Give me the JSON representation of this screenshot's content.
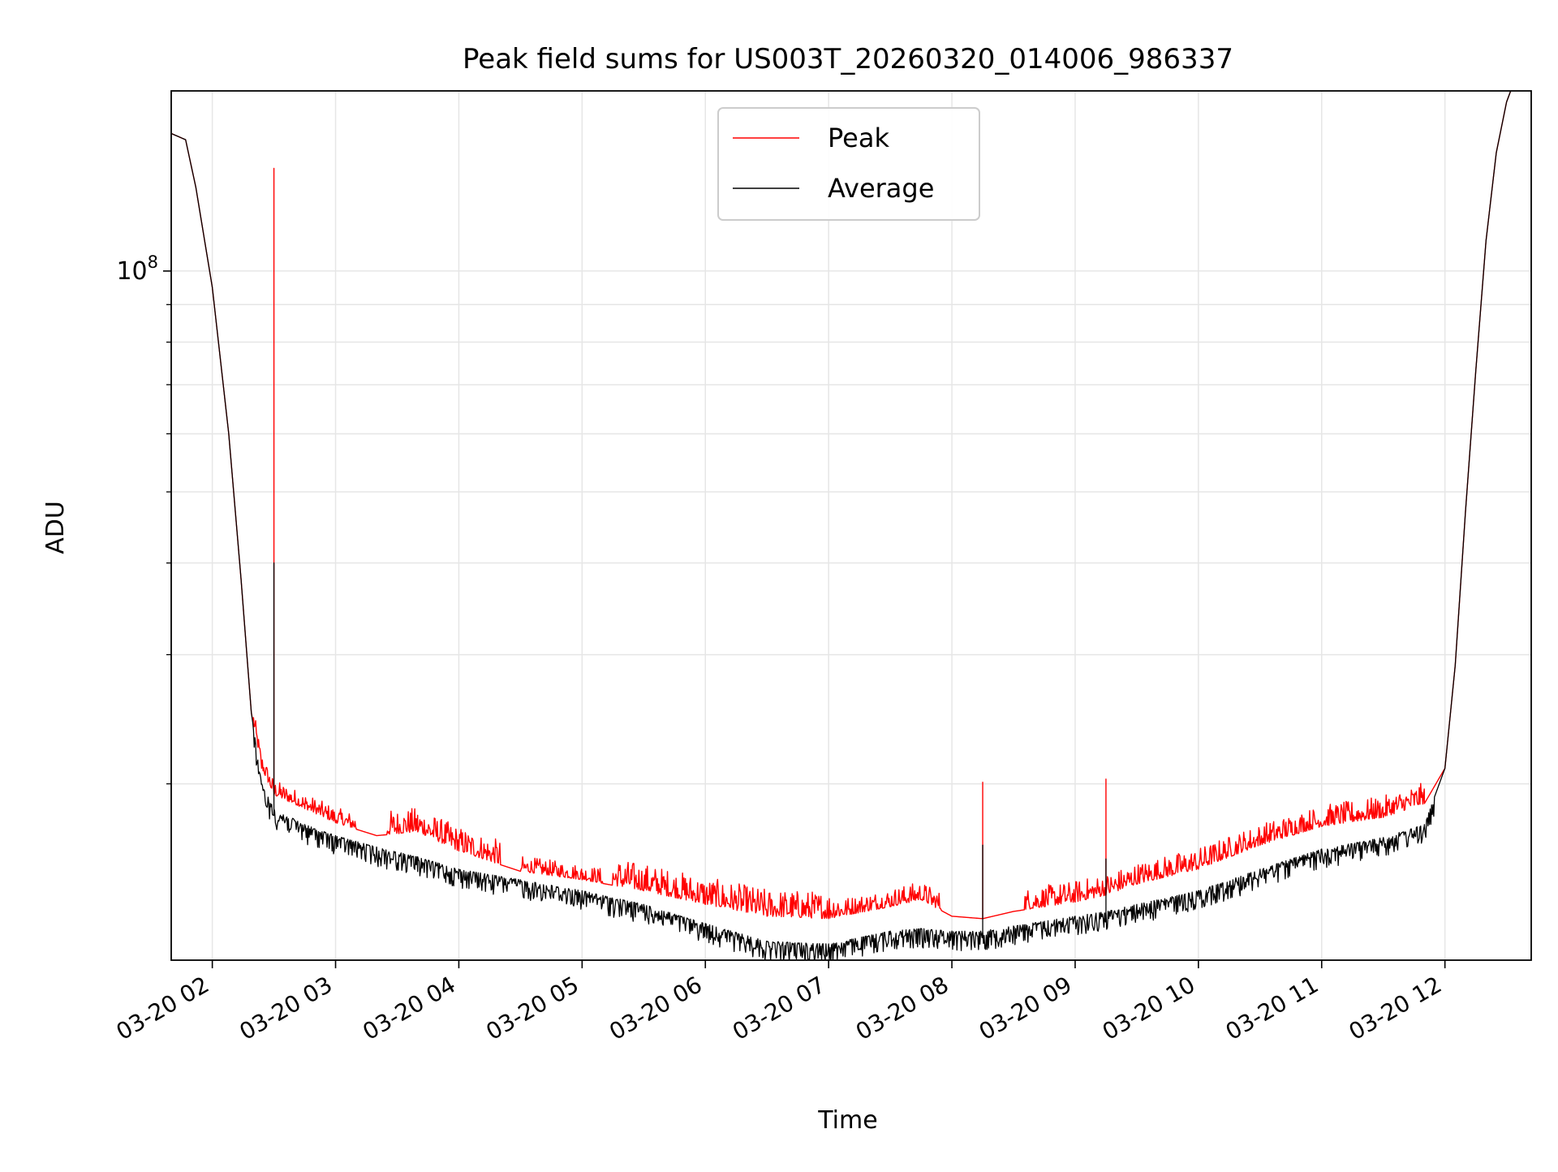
{
  "chart_data": {
    "type": "line",
    "title": "Peak field sums for US003T_20260320_014006_986337",
    "xlabel": "Time",
    "ylabel": "ADU",
    "y_scale": "log",
    "grid": true,
    "legend_position": "upper-center",
    "x_range": [
      "03-20 01:40",
      "03-20 12:42"
    ],
    "ylim": [
      11500000,
      176000000
    ],
    "x_ticks": [
      "03-20 02",
      "03-20 03",
      "03-20 04",
      "03-20 05",
      "03-20 06",
      "03-20 07",
      "03-20 08",
      "03-20 09",
      "03-20 10",
      "03-20 11",
      "03-20 12"
    ],
    "y_tick_labels": [
      {
        "value": 100000000,
        "base": "10",
        "exponent": "8"
      }
    ],
    "y_minor_ticks": [
      20000000,
      30000000,
      40000000,
      50000000,
      60000000,
      70000000,
      80000000,
      90000000
    ],
    "colors": {
      "Peak": "#ff0000",
      "Average": "#000000"
    },
    "series": [
      {
        "name": "Peak",
        "color": "#ff0000",
        "points": [
          [
            "03-20 01:40",
            154000000
          ],
          [
            "03-20 01:47",
            151000000
          ],
          [
            "03-20 01:52",
            130000000
          ],
          [
            "03-20 02:00",
            95000000
          ],
          [
            "03-20 02:08",
            60000000
          ],
          [
            "03-20 02:14",
            38000000
          ],
          [
            "03-20 02:19",
            25000000
          ],
          [
            "03-20 02:24",
            21000000
          ],
          [
            "03-20 02:30",
            19300000
          ],
          [
            "03-20 02:30",
            138000000
          ],
          [
            "03-20 02:30",
            19300000
          ],
          [
            "03-20 02:45",
            18500000
          ],
          [
            "03-20 03:00",
            17700000
          ],
          [
            "03-20 03:20",
            17000000
          ],
          [
            "03-20 03:40",
            17200000
          ],
          [
            "03-20 04:00",
            16200000
          ],
          [
            "03-20 04:30",
            15200000
          ],
          [
            "03-20 05:00",
            14800000
          ],
          [
            "03-20 05:30",
            14300000
          ],
          [
            "03-20 06:00",
            13700000
          ],
          [
            "03-20 06:30",
            13200000
          ],
          [
            "03-20 07:00",
            13100000
          ],
          [
            "03-20 07:30",
            13600000
          ],
          [
            "03-20 07:45",
            13900000
          ],
          [
            "03-20 08:00",
            13200000
          ],
          [
            "03-20 08:15",
            13100000
          ],
          [
            "03-20 08:15",
            20100000
          ],
          [
            "03-20 08:15",
            13100000
          ],
          [
            "03-20 08:30",
            13400000
          ],
          [
            "03-20 09:00",
            13800000
          ],
          [
            "03-20 09:15",
            14100000
          ],
          [
            "03-20 09:15",
            20300000
          ],
          [
            "03-20 09:15",
            14100000
          ],
          [
            "03-20 09:30",
            14600000
          ],
          [
            "03-20 10:00",
            15300000
          ],
          [
            "03-20 10:30",
            16500000
          ],
          [
            "03-20 11:00",
            17500000
          ],
          [
            "03-20 11:30",
            18000000
          ],
          [
            "03-20 11:50",
            18800000
          ],
          [
            "03-20 12:00",
            21000000
          ],
          [
            "03-20 12:05",
            29000000
          ],
          [
            "03-20 12:10",
            47000000
          ],
          [
            "03-20 12:15",
            73000000
          ],
          [
            "03-20 12:20",
            110000000
          ],
          [
            "03-20 12:25",
            145000000
          ],
          [
            "03-20 12:30",
            170000000
          ],
          [
            "03-20 12:32",
            176000000
          ]
        ]
      },
      {
        "name": "Average",
        "color": "#000000",
        "points": [
          [
            "03-20 01:40",
            154000000
          ],
          [
            "03-20 01:47",
            151000000
          ],
          [
            "03-20 01:52",
            130000000
          ],
          [
            "03-20 02:00",
            95000000
          ],
          [
            "03-20 02:08",
            60000000
          ],
          [
            "03-20 02:14",
            38000000
          ],
          [
            "03-20 02:19",
            25000000
          ],
          [
            "03-20 02:24",
            20000000
          ],
          [
            "03-20 02:30",
            18500000
          ],
          [
            "03-20 02:30",
            40000000
          ],
          [
            "03-20 02:30",
            18500000
          ],
          [
            "03-20 02:45",
            17600000
          ],
          [
            "03-20 03:00",
            17000000
          ],
          [
            "03-20 03:20",
            16400000
          ],
          [
            "03-20 03:40",
            15900000
          ],
          [
            "03-20 04:00",
            15300000
          ],
          [
            "03-20 04:30",
            14800000
          ],
          [
            "03-20 05:00",
            14300000
          ],
          [
            "03-20 05:30",
            13700000
          ],
          [
            "03-20 06:00",
            12900000
          ],
          [
            "03-20 06:30",
            12200000
          ],
          [
            "03-20 07:00",
            12100000
          ],
          [
            "03-20 07:30",
            12600000
          ],
          [
            "03-20 07:45",
            12700000
          ],
          [
            "03-20 08:00",
            12600000
          ],
          [
            "03-20 08:15",
            12600000
          ],
          [
            "03-20 08:15",
            16500000
          ],
          [
            "03-20 08:15",
            12600000
          ],
          [
            "03-20 08:30",
            12800000
          ],
          [
            "03-20 09:00",
            13200000
          ],
          [
            "03-20 09:15",
            13400000
          ],
          [
            "03-20 09:15",
            15800000
          ],
          [
            "03-20 09:15",
            13400000
          ],
          [
            "03-20 09:30",
            13700000
          ],
          [
            "03-20 10:00",
            14300000
          ],
          [
            "03-20 10:30",
            15300000
          ],
          [
            "03-20 11:00",
            16300000
          ],
          [
            "03-20 11:30",
            16900000
          ],
          [
            "03-20 11:50",
            17600000
          ],
          [
            "03-20 12:00",
            21000000
          ],
          [
            "03-20 12:05",
            29000000
          ],
          [
            "03-20 12:10",
            47000000
          ],
          [
            "03-20 12:15",
            73000000
          ],
          [
            "03-20 12:20",
            110000000
          ],
          [
            "03-20 12:25",
            145000000
          ],
          [
            "03-20 12:30",
            170000000
          ],
          [
            "03-20 12:32",
            176000000
          ]
        ]
      }
    ],
    "noise": {
      "Peak": [
        {
          "from": "03-20 02:20",
          "to": "03-20 03:10",
          "spread": 0.05
        },
        {
          "from": "03-20 03:25",
          "to": "03-20 04:20",
          "spread": 0.08
        },
        {
          "from": "03-20 04:30",
          "to": "03-20 05:10",
          "spread": 0.05
        },
        {
          "from": "03-20 05:15",
          "to": "03-20 07:05",
          "spread": 0.09
        },
        {
          "from": "03-20 07:05",
          "to": "03-20 07:55",
          "spread": 0.06
        },
        {
          "from": "03-20 08:35",
          "to": "03-20 11:50",
          "spread": 0.07
        }
      ],
      "Average": [
        {
          "from": "03-20 02:20",
          "to": "03-20 11:55",
          "spread": 0.06
        }
      ]
    }
  }
}
